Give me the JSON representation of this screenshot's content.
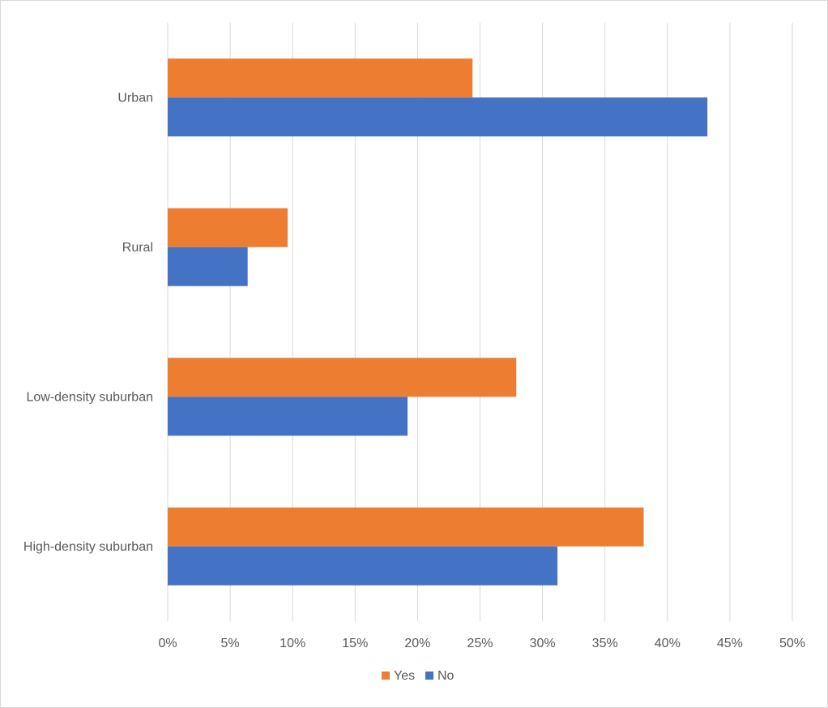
{
  "chart_data": {
    "type": "bar",
    "orientation": "horizontal",
    "categories": [
      "High-density suburban",
      "Low-density suburban",
      "Rural",
      "Urban"
    ],
    "series": [
      {
        "name": "Yes",
        "values": [
          38.1,
          27.9,
          9.6,
          24.4
        ],
        "color": "#ED7D31"
      },
      {
        "name": "No",
        "values": [
          31.2,
          19.2,
          6.4,
          43.2
        ],
        "color": "#4472C4"
      }
    ],
    "xlim": [
      0,
      50
    ],
    "xticks": [
      0,
      5,
      10,
      15,
      20,
      25,
      30,
      35,
      40,
      45,
      50
    ],
    "tick_suffix": "%",
    "grid": true,
    "gridline_color": "#d9d9d9",
    "legend_position": "bottom"
  }
}
